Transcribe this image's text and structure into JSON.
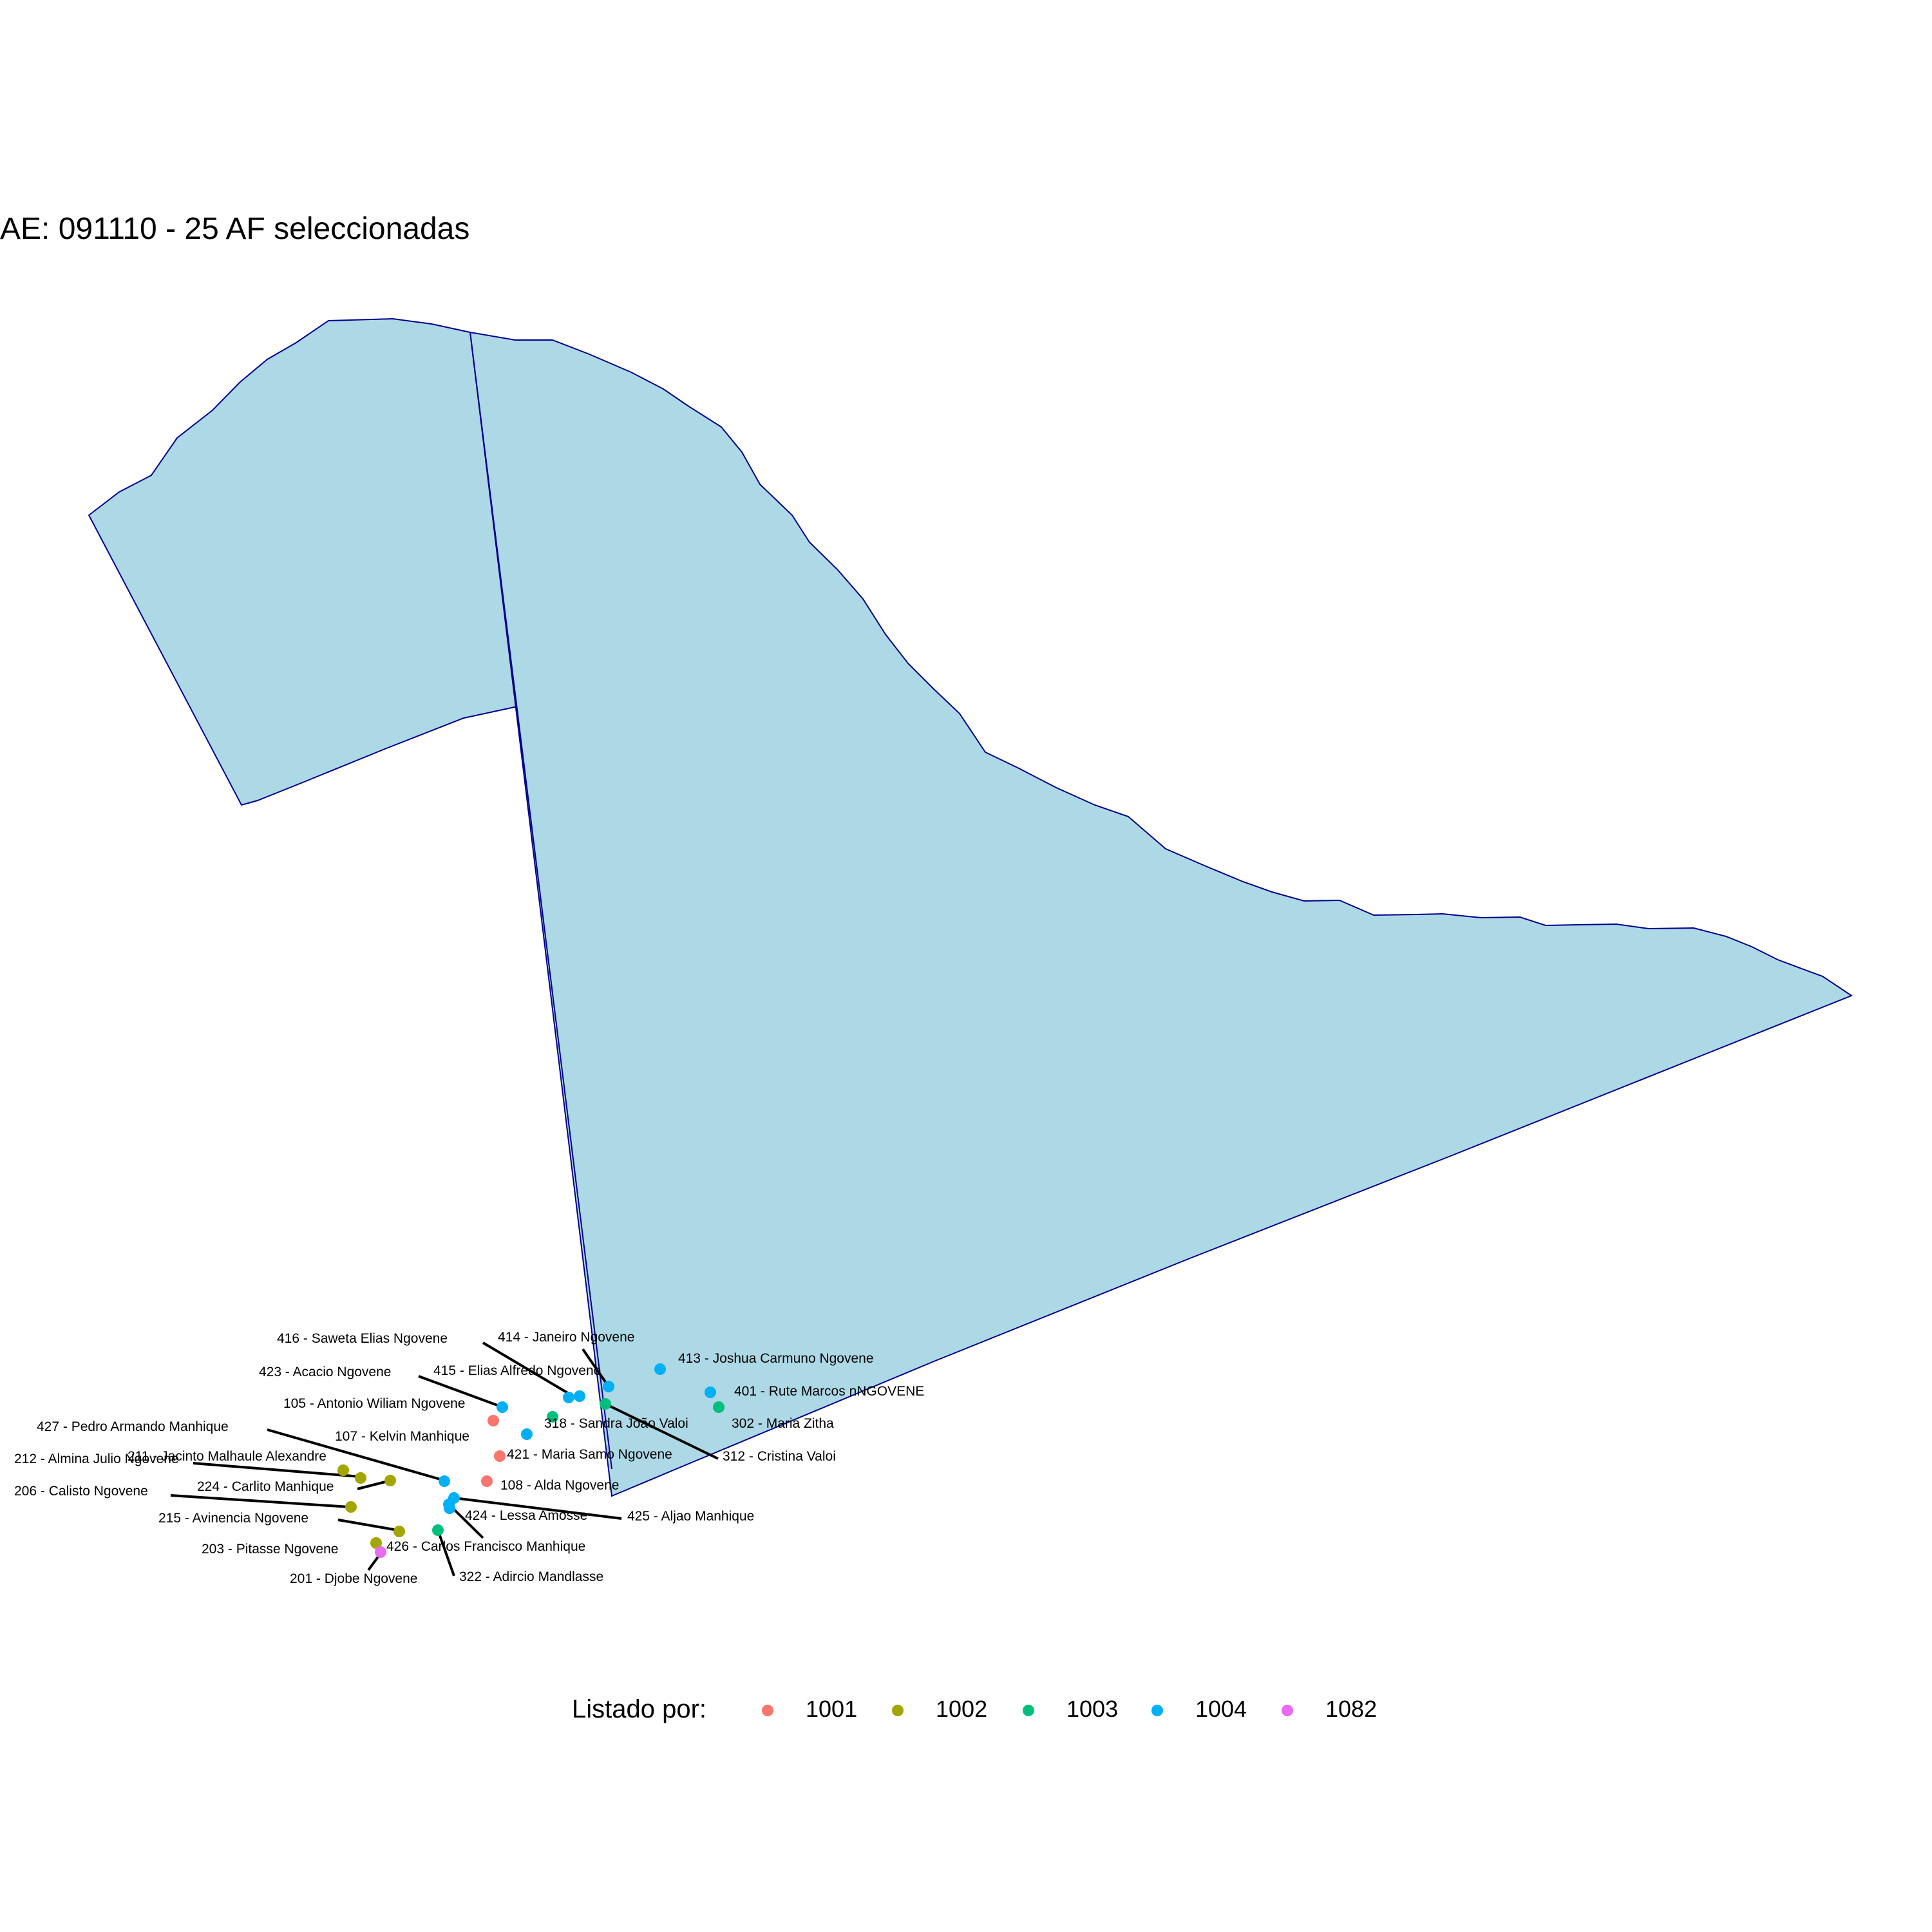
{
  "title": "AE: 091110 - 25  AF seleccionadas",
  "legend": {
    "title": "Listado por:",
    "items": [
      {
        "label": "1001",
        "color": "#F8766D"
      },
      {
        "label": "1002",
        "color": "#A3A500"
      },
      {
        "label": "1003",
        "color": "#00BF7D"
      },
      {
        "label": "1004",
        "color": "#00B0F6"
      },
      {
        "label": "1082",
        "color": "#E76BF3"
      }
    ]
  },
  "map": {
    "fill_color": "#ADD8E6",
    "border_color": "#00008B",
    "regions": [
      "region-west",
      "region-east"
    ]
  },
  "points": [
    {
      "label": "416 - Saweta  Elias Ngovene",
      "listed_by": "1004"
    },
    {
      "label": "414 - Janeiro  Ngovene",
      "listed_by": "1004"
    },
    {
      "label": "413 - Joshua  Carmuno Ngovene",
      "listed_by": "1004"
    },
    {
      "label": "423 - Acacio  Ngovene",
      "listed_by": "1004"
    },
    {
      "label": "415 - Elias Alfredo Ngovene",
      "listed_by": "1004"
    },
    {
      "label": "401 - Rute Marcos nNGOVENE",
      "listed_by": "1004"
    },
    {
      "label": "105 - Antonio Wiliam  Ngovene",
      "listed_by": "1001"
    },
    {
      "label": "318 - Sandra João  Valoi",
      "listed_by": "1003"
    },
    {
      "label": "302 - Maria  Zitha",
      "listed_by": "1003"
    },
    {
      "label": "427 - Pedro  Armando Manhique",
      "listed_by": "1004"
    },
    {
      "label": "107 - Kelvin Manhique",
      "listed_by": "1004"
    },
    {
      "label": "421 - Maria  Samo  Ngovene",
      "listed_by": "1001"
    },
    {
      "label": "312 - Cristina  Valoi",
      "listed_by": "1003"
    },
    {
      "label": "212 - Almina  Julio Ngovene",
      "listed_by": "1002"
    },
    {
      "label": "211 - Jacinto Malhaule Alexandre",
      "listed_by": "1002"
    },
    {
      "label": "224 - Carlito Manhique",
      "listed_by": "1002"
    },
    {
      "label": "108 - Alda Ngovene",
      "listed_by": "1001"
    },
    {
      "label": "206 - Calisto  Ngovene",
      "listed_by": "1002"
    },
    {
      "label": "215 - Avinencia  Ngovene",
      "listed_by": "1002"
    },
    {
      "label": "424 - Lessa Amosse",
      "listed_by": "1004"
    },
    {
      "label": "425 - Aljao  Manhique",
      "listed_by": "1004"
    },
    {
      "label": "203 - Pitasse  Ngovene",
      "listed_by": "1002"
    },
    {
      "label": "426 - Carlos Francisco Manhique",
      "listed_by": "1004"
    },
    {
      "label": "201 - Djobe  Ngovene",
      "listed_by": "1082"
    },
    {
      "label": "322 - Adircio Mandlasse",
      "listed_by": "1003"
    }
  ]
}
